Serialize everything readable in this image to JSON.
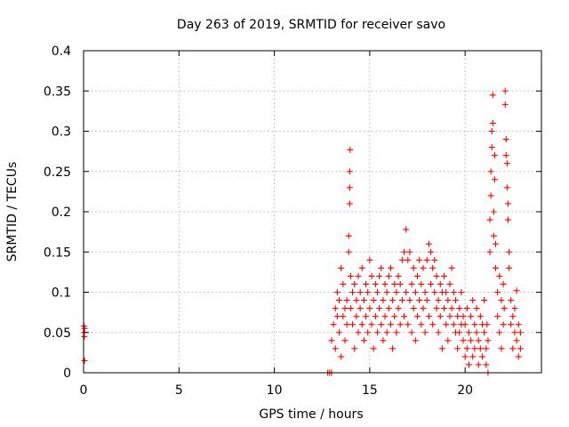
{
  "chart_data": {
    "type": "scatter",
    "title": "Day 263 of 2019, SRMTID for receiver savo",
    "xlabel": "GPS time / hours",
    "ylabel": "SRMTID / TECUs",
    "xlim": [
      0,
      24
    ],
    "ylim": [
      0,
      0.4
    ],
    "xticks": [
      0,
      5,
      10,
      15,
      20
    ],
    "yticks": [
      0,
      0.05,
      0.1,
      0.15,
      0.2,
      0.25,
      0.3,
      0.35,
      0.4
    ],
    "xtick_labels": [
      "0",
      "5",
      "10",
      "15",
      "20"
    ],
    "ytick_labels": [
      "0",
      "0.05",
      "0.1",
      "0.15",
      "0.2",
      "0.25",
      "0.3",
      "0.35",
      "0.4"
    ],
    "grid": true,
    "marker": "+",
    "series": [
      {
        "name": "SRMTID",
        "color": "#ff0000",
        "points": [
          [
            0.02,
            0.058
          ],
          [
            0.03,
            0.05
          ],
          [
            0.04,
            0.045
          ],
          [
            0.05,
            0.015
          ],
          [
            0.06,
            0.055
          ],
          [
            12.8,
            0.0
          ],
          [
            12.9,
            0.0
          ],
          [
            13.0,
            0.0
          ],
          [
            13.0,
            0.04
          ],
          [
            13.1,
            0.06
          ],
          [
            13.2,
            0.08
          ],
          [
            13.2,
            0.03
          ],
          [
            13.3,
            0.07
          ],
          [
            13.3,
            0.1
          ],
          [
            13.4,
            0.05
          ],
          [
            13.4,
            0.09
          ],
          [
            13.5,
            0.13
          ],
          [
            13.5,
            0.02
          ],
          [
            13.6,
            0.07
          ],
          [
            13.6,
            0.11
          ],
          [
            13.7,
            0.08
          ],
          [
            13.7,
            0.04
          ],
          [
            13.8,
            0.09
          ],
          [
            13.8,
            0.06
          ],
          [
            13.9,
            0.17
          ],
          [
            13.9,
            0.15
          ],
          [
            13.95,
            0.21
          ],
          [
            13.95,
            0.23
          ],
          [
            13.95,
            0.25
          ],
          [
            13.97,
            0.277
          ],
          [
            14.0,
            0.12
          ],
          [
            14.0,
            0.08
          ],
          [
            14.1,
            0.1
          ],
          [
            14.1,
            0.06
          ],
          [
            14.2,
            0.11
          ],
          [
            14.2,
            0.03
          ],
          [
            14.3,
            0.09
          ],
          [
            14.3,
            0.07
          ],
          [
            14.4,
            0.12
          ],
          [
            14.4,
            0.05
          ],
          [
            14.5,
            0.08
          ],
          [
            14.5,
            0.1
          ],
          [
            14.6,
            0.06
          ],
          [
            14.6,
            0.13
          ],
          [
            14.7,
            0.09
          ],
          [
            14.7,
            0.04
          ],
          [
            14.8,
            0.11
          ],
          [
            14.8,
            0.07
          ],
          [
            14.9,
            0.05
          ],
          [
            14.9,
            0.1
          ],
          [
            15.0,
            0.14
          ],
          [
            15.0,
            0.08
          ],
          [
            15.1,
            0.06
          ],
          [
            15.1,
            0.12
          ],
          [
            15.2,
            0.09
          ],
          [
            15.2,
            0.03
          ],
          [
            15.3,
            0.07
          ],
          [
            15.3,
            0.11
          ],
          [
            15.4,
            0.1
          ],
          [
            15.4,
            0.05
          ],
          [
            15.5,
            0.08
          ],
          [
            15.5,
            0.12
          ],
          [
            15.6,
            0.06
          ],
          [
            15.6,
            0.13
          ],
          [
            15.7,
            0.09
          ],
          [
            15.7,
            0.04
          ],
          [
            15.8,
            0.11
          ],
          [
            15.8,
            0.07
          ],
          [
            15.9,
            0.1
          ],
          [
            15.9,
            0.05
          ],
          [
            16.0,
            0.12
          ],
          [
            16.0,
            0.08
          ],
          [
            16.1,
            0.06
          ],
          [
            16.1,
            0.13
          ],
          [
            16.2,
            0.09
          ],
          [
            16.2,
            0.03
          ],
          [
            16.3,
            0.11
          ],
          [
            16.3,
            0.07
          ],
          [
            16.4,
            0.1
          ],
          [
            16.4,
            0.05
          ],
          [
            16.5,
            0.08
          ],
          [
            16.5,
            0.12
          ],
          [
            16.6,
            0.06
          ],
          [
            16.6,
            0.11
          ],
          [
            16.7,
            0.09
          ],
          [
            16.7,
            0.14
          ],
          [
            16.8,
            0.15
          ],
          [
            16.8,
            0.07
          ],
          [
            16.9,
            0.178
          ],
          [
            16.9,
            0.1
          ],
          [
            17.0,
            0.14
          ],
          [
            17.0,
            0.06
          ],
          [
            17.1,
            0.15
          ],
          [
            17.1,
            0.09
          ],
          [
            17.2,
            0.11
          ],
          [
            17.2,
            0.05
          ],
          [
            17.3,
            0.13
          ],
          [
            17.3,
            0.08
          ],
          [
            17.4,
            0.1
          ],
          [
            17.4,
            0.04
          ],
          [
            17.5,
            0.12
          ],
          [
            17.5,
            0.07
          ],
          [
            17.6,
            0.09
          ],
          [
            17.6,
            0.14
          ],
          [
            17.7,
            0.11
          ],
          [
            17.7,
            0.06
          ],
          [
            17.8,
            0.13
          ],
          [
            17.8,
            0.08
          ],
          [
            17.9,
            0.1
          ],
          [
            17.9,
            0.05
          ],
          [
            18.0,
            0.14
          ],
          [
            18.0,
            0.09
          ],
          [
            18.1,
            0.16
          ],
          [
            18.1,
            0.07
          ],
          [
            18.2,
            0.15
          ],
          [
            18.2,
            0.11
          ],
          [
            18.3,
            0.13
          ],
          [
            18.3,
            0.06
          ],
          [
            18.4,
            0.1
          ],
          [
            18.4,
            0.14
          ],
          [
            18.5,
            0.12
          ],
          [
            18.5,
            0.08
          ],
          [
            18.6,
            0.09
          ],
          [
            18.6,
            0.05
          ],
          [
            18.7,
            0.11
          ],
          [
            18.7,
            0.07
          ],
          [
            18.8,
            0.1
          ],
          [
            18.8,
            0.03
          ],
          [
            18.9,
            0.08
          ],
          [
            18.9,
            0.12
          ],
          [
            19.0,
            0.06
          ],
          [
            19.0,
            0.1
          ],
          [
            19.1,
            0.09
          ],
          [
            19.1,
            0.04
          ],
          [
            19.2,
            0.11
          ],
          [
            19.2,
            0.07
          ],
          [
            19.3,
            0.08
          ],
          [
            19.3,
            0.13
          ],
          [
            19.4,
            0.06
          ],
          [
            19.4,
            0.1
          ],
          [
            19.5,
            0.05
          ],
          [
            19.5,
            0.09
          ],
          [
            19.6,
            0.07
          ],
          [
            19.6,
            0.03
          ],
          [
            19.7,
            0.08
          ],
          [
            19.7,
            0.05
          ],
          [
            19.8,
            0.06
          ],
          [
            19.8,
            0.1
          ],
          [
            19.9,
            0.04
          ],
          [
            19.9,
            0.07
          ],
          [
            20.0,
            0.02
          ],
          [
            20.0,
            0.06
          ],
          [
            20.1,
            0.08
          ],
          [
            20.1,
            0.03
          ],
          [
            20.2,
            0.05
          ],
          [
            20.2,
            0.01
          ],
          [
            20.3,
            0.07
          ],
          [
            20.3,
            0.04
          ],
          [
            20.4,
            0.09
          ],
          [
            20.4,
            0.02
          ],
          [
            20.5,
            0.06
          ],
          [
            20.5,
            0.03
          ],
          [
            20.6,
            0.05
          ],
          [
            20.6,
            0.08
          ],
          [
            20.7,
            0.04
          ],
          [
            20.7,
            0.01
          ],
          [
            20.8,
            0.07
          ],
          [
            20.8,
            0.03
          ],
          [
            20.9,
            0.06
          ],
          [
            20.9,
            0.02
          ],
          [
            21.0,
            0.05
          ],
          [
            21.0,
            0.09
          ],
          [
            21.1,
            0.03
          ],
          [
            21.1,
            0.01
          ],
          [
            21.15,
            0.06
          ],
          [
            21.2,
            0.0
          ],
          [
            21.2,
            0.04
          ],
          [
            21.3,
            0.15
          ],
          [
            21.3,
            0.19
          ],
          [
            21.35,
            0.22
          ],
          [
            21.35,
            0.25
          ],
          [
            21.4,
            0.28
          ],
          [
            21.4,
            0.3
          ],
          [
            21.45,
            0.345
          ],
          [
            21.45,
            0.31
          ],
          [
            21.5,
            0.2
          ],
          [
            21.5,
            0.17
          ],
          [
            21.55,
            0.24
          ],
          [
            21.55,
            0.27
          ],
          [
            21.6,
            0.16
          ],
          [
            21.6,
            0.13
          ],
          [
            21.7,
            0.1
          ],
          [
            21.7,
            0.07
          ],
          [
            21.8,
            0.12
          ],
          [
            21.8,
            0.05
          ],
          [
            21.9,
            0.09
          ],
          [
            21.9,
            0.03
          ],
          [
            22.0,
            0.11
          ],
          [
            22.0,
            0.06
          ],
          [
            22.05,
            0.08
          ],
          [
            22.1,
            0.35
          ],
          [
            22.1,
            0.333
          ],
          [
            22.15,
            0.29
          ],
          [
            22.15,
            0.27
          ],
          [
            22.2,
            0.26
          ],
          [
            22.2,
            0.23
          ],
          [
            22.25,
            0.21
          ],
          [
            22.25,
            0.19
          ],
          [
            22.3,
            0.15
          ],
          [
            22.3,
            0.13
          ],
          [
            22.4,
            0.09
          ],
          [
            22.4,
            0.06
          ],
          [
            22.5,
            0.07
          ],
          [
            22.5,
            0.03
          ],
          [
            22.6,
            0.05
          ],
          [
            22.6,
            0.08
          ],
          [
            22.7,
            0.04
          ],
          [
            22.7,
            0.102
          ],
          [
            22.8,
            0.06
          ],
          [
            22.8,
            0.02
          ],
          [
            22.9,
            0.05
          ],
          [
            22.9,
            0.03
          ]
        ]
      }
    ]
  }
}
